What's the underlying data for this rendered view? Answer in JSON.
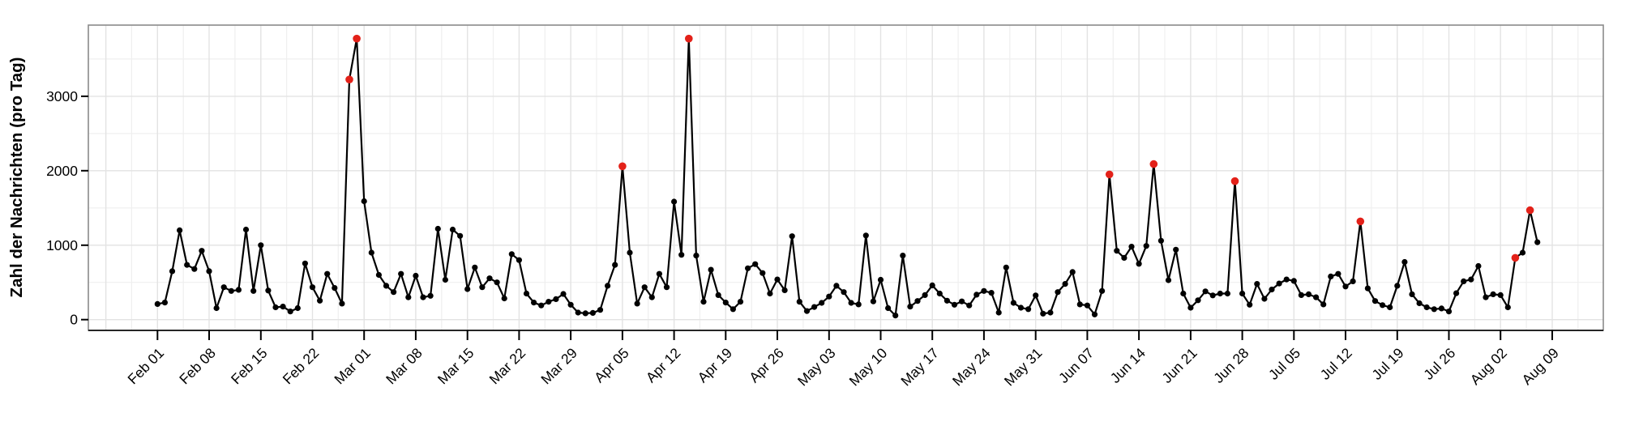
{
  "chart_data": {
    "type": "line",
    "title": "",
    "xlabel": "",
    "ylabel": "Zahl der Nachrichten (pro Tag)",
    "x_unit": "day",
    "x_start_label": "Feb 01",
    "x_end_label": "Aug 07",
    "x_tick_labels": [
      "Feb 01",
      "Feb 08",
      "Feb 15",
      "Feb 22",
      "Mar 01",
      "Mar 08",
      "Mar 15",
      "Mar 22",
      "Mar 29",
      "Apr 05",
      "Apr 12",
      "Apr 19",
      "Apr 26",
      "May 03",
      "May 10",
      "May 17",
      "May 24",
      "May 31",
      "Jun 07",
      "Jun 14",
      "Jun 21",
      "Jun 28",
      "Jul 05",
      "Jul 12",
      "Jul 19",
      "Jul 26",
      "Aug 02",
      "Aug 09"
    ],
    "x_tick_day_indices": [
      0,
      7,
      14,
      21,
      28,
      35,
      42,
      49,
      56,
      63,
      70,
      77,
      84,
      91,
      98,
      105,
      112,
      119,
      126,
      133,
      140,
      147,
      154,
      161,
      168,
      175,
      182,
      189
    ],
    "y_ticks": [
      0,
      1000,
      2000,
      3000
    ],
    "y_tick_labels": [
      "0",
      "1000",
      "2000",
      "3000"
    ],
    "y_minor_gridlines": [
      500,
      1500,
      2500,
      3500
    ],
    "ylim": [
      0,
      3960
    ],
    "grid": "on",
    "legend": "none",
    "series": [
      {
        "name": "Nachrichten pro Tag",
        "color": "#000000",
        "values": [
          210,
          230,
          650,
          1200,
          735,
          680,
          925,
          650,
          155,
          435,
          385,
          400,
          1210,
          385,
          1000,
          390,
          165,
          175,
          110,
          155,
          755,
          435,
          255,
          615,
          425,
          215,
          3225,
          3775,
          1590,
          900,
          600,
          455,
          370,
          615,
          300,
          590,
          300,
          320,
          1220,
          535,
          1210,
          1125,
          410,
          700,
          435,
          555,
          500,
          285,
          880,
          800,
          350,
          230,
          190,
          240,
          275,
          345,
          200,
          95,
          85,
          90,
          130,
          455,
          735,
          2060,
          900,
          215,
          435,
          300,
          615,
          435,
          1585,
          870,
          3775,
          860,
          240,
          670,
          330,
          230,
          140,
          240,
          690,
          745,
          625,
          350,
          540,
          395,
          1120,
          240,
          115,
          170,
          225,
          310,
          455,
          370,
          225,
          205,
          1130,
          245,
          535,
          155,
          55,
          860,
          175,
          250,
          330,
          460,
          350,
          255,
          200,
          245,
          190,
          335,
          385,
          360,
          95,
          700,
          225,
          160,
          140,
          325,
          80,
          95,
          370,
          480,
          640,
          205,
          190,
          70,
          385,
          1950,
          925,
          830,
          980,
          750,
          990,
          2090,
          1060,
          530,
          940,
          350,
          160,
          260,
          380,
          325,
          350,
          350,
          1860,
          350,
          200,
          480,
          280,
          405,
          485,
          540,
          520,
          330,
          340,
          300,
          205,
          580,
          615,
          445,
          515,
          1320,
          420,
          250,
          195,
          165,
          455,
          775,
          340,
          220,
          165,
          140,
          150,
          110,
          355,
          515,
          540,
          720,
          300,
          340,
          330,
          165,
          830,
          900,
          1470,
          1040
        ]
      }
    ],
    "highlights": {
      "color": "#e32119",
      "description": "red peak markers",
      "indices": [
        26,
        27,
        63,
        72,
        129,
        135,
        146,
        163,
        184,
        186
      ],
      "values": [
        3225,
        3775,
        2060,
        3775,
        1950,
        2090,
        1860,
        1320,
        830,
        1470
      ]
    }
  },
  "style": {
    "page_bg": "#ffffff",
    "panel_bg": "#ffffff",
    "grid_major": "#e3e3e3",
    "grid_minor": "#efefef",
    "panel_border": "#8a8a8a",
    "axis_line": "#111111",
    "tick_color": "#000000",
    "text_color": "#000000",
    "point_color": "#000000",
    "line_color": "#000000"
  }
}
